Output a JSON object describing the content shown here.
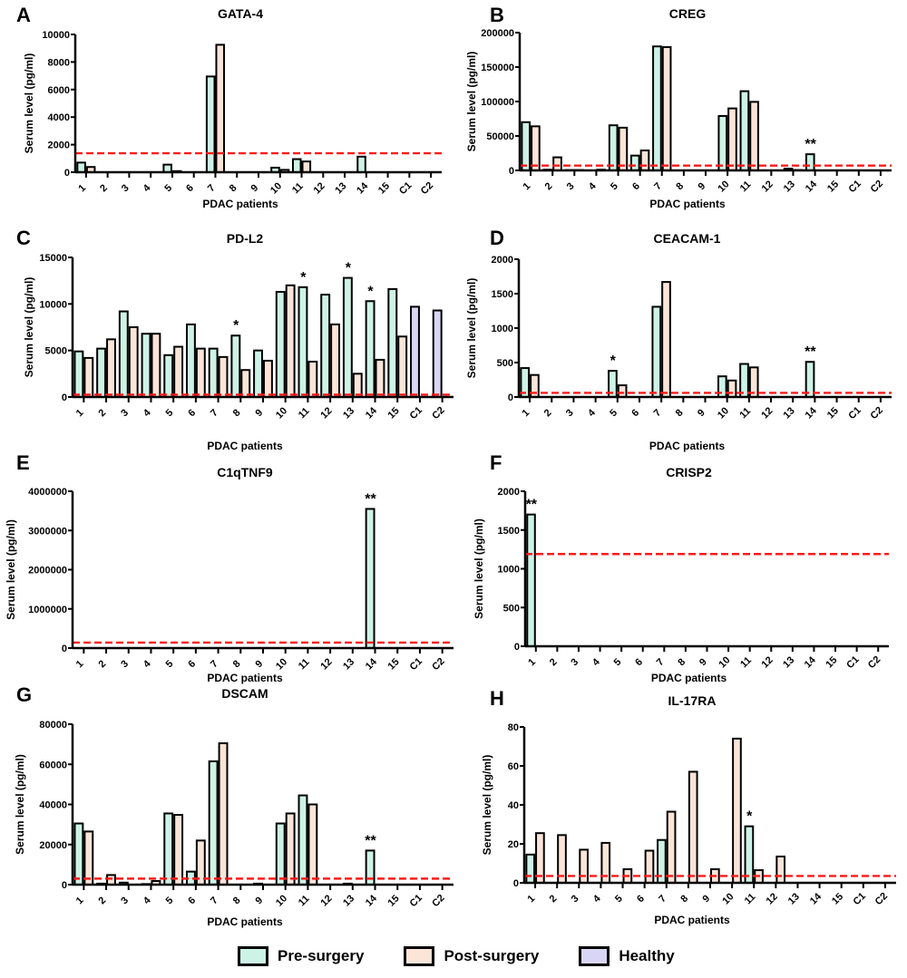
{
  "figure": {
    "legend": [
      {
        "label": "Pre-surgery",
        "color": "#cdf3e6"
      },
      {
        "label": "Post-surgery",
        "color": "#fbe4d8"
      },
      {
        "label": "Healthy",
        "color": "#d9d6f5"
      }
    ],
    "threshold_color": "#ff1a1a"
  },
  "chart_data": [
    {
      "panel": "A",
      "type": "bar",
      "title": "GATA-4",
      "xlabel": "PDAC patients",
      "ylabel": "Serum level (pg/ml)",
      "ylim": [
        0,
        10000
      ],
      "yticks": [
        0,
        2000,
        4000,
        6000,
        8000,
        10000
      ],
      "categories": [
        "1",
        "2",
        "3",
        "4",
        "5",
        "6",
        "7",
        "8",
        "9",
        "10",
        "11",
        "12",
        "13",
        "14",
        "15",
        "C1",
        "C2"
      ],
      "series": [
        {
          "name": "Pre-surgery",
          "values": [
            700,
            0,
            0,
            0,
            550,
            0,
            6950,
            0,
            0,
            330,
            950,
            0,
            0,
            1130,
            0,
            null,
            null
          ]
        },
        {
          "name": "Post-surgery",
          "values": [
            380,
            0,
            0,
            0,
            80,
            0,
            9250,
            0,
            0,
            170,
            780,
            0,
            0,
            0,
            0,
            null,
            null
          ]
        },
        {
          "name": "Healthy",
          "values": [
            null,
            null,
            null,
            null,
            null,
            null,
            null,
            null,
            null,
            null,
            null,
            null,
            null,
            null,
            null,
            0,
            0
          ]
        }
      ],
      "threshold": 1380,
      "significance": []
    },
    {
      "panel": "B",
      "type": "bar",
      "title": "CREG",
      "xlabel": "PDAC patients",
      "ylabel": "Serum level (pg/ml)",
      "ylim": [
        0,
        200000
      ],
      "yticks": [
        0,
        50000,
        100000,
        150000,
        200000
      ],
      "categories": [
        "1",
        "2",
        "3",
        "4",
        "5",
        "6",
        "7",
        "8",
        "9",
        "10",
        "11",
        "12",
        "13",
        "14",
        "15",
        "C1",
        "C2"
      ],
      "series": [
        {
          "name": "Pre-surgery",
          "values": [
            70000,
            1000,
            500,
            0,
            65500,
            21500,
            180000,
            0,
            0,
            79000,
            115000,
            0,
            2500,
            23500,
            0,
            null,
            null
          ]
        },
        {
          "name": "Post-surgery",
          "values": [
            64000,
            19000,
            500,
            1000,
            62000,
            29000,
            179000,
            0,
            0,
            90000,
            99500,
            0,
            500,
            0,
            0,
            null,
            null
          ]
        },
        {
          "name": "Healthy",
          "values": [
            null,
            null,
            null,
            null,
            null,
            null,
            null,
            null,
            null,
            null,
            null,
            null,
            null,
            null,
            null,
            0,
            0
          ]
        }
      ],
      "threshold": 7000,
      "significance": [
        {
          "category": "14",
          "label": "**"
        }
      ]
    },
    {
      "panel": "C",
      "type": "bar",
      "title": "PD-L2",
      "xlabel": "PDAC patients",
      "ylabel": "Serum level (pg/ml)",
      "ylim": [
        0,
        15000
      ],
      "yticks": [
        0,
        5000,
        10000,
        15000
      ],
      "categories": [
        "1",
        "2",
        "3",
        "4",
        "5",
        "6",
        "7",
        "8",
        "9",
        "10",
        "11",
        "12",
        "13",
        "14",
        "15",
        "C1",
        "C2"
      ],
      "series": [
        {
          "name": "Pre-surgery",
          "values": [
            4900,
            5200,
            9200,
            6800,
            4500,
            7800,
            5200,
            6600,
            5000,
            11300,
            11800,
            11000,
            12800,
            10300,
            11600,
            null,
            null
          ]
        },
        {
          "name": "Post-surgery",
          "values": [
            4200,
            6200,
            7500,
            6800,
            5400,
            5200,
            4300,
            2900,
            3900,
            12000,
            3800,
            7800,
            2500,
            4000,
            6500,
            null,
            null
          ]
        },
        {
          "name": "Healthy",
          "values": [
            null,
            null,
            null,
            null,
            null,
            null,
            null,
            null,
            null,
            null,
            null,
            null,
            null,
            null,
            null,
            9700,
            9300
          ]
        }
      ],
      "threshold": 250,
      "significance": [
        {
          "category": "8",
          "label": "*"
        },
        {
          "category": "11",
          "label": "*"
        },
        {
          "category": "13",
          "label": "*"
        },
        {
          "category": "14",
          "label": "*"
        }
      ]
    },
    {
      "panel": "D",
      "type": "bar",
      "title": "CEACAM-1",
      "xlabel": "PDAC patients",
      "ylabel": "Serum level (pg/ml)",
      "ylim": [
        0,
        2000
      ],
      "yticks": [
        0,
        500,
        1000,
        1500,
        2000
      ],
      "categories": [
        "1",
        "2",
        "3",
        "4",
        "5",
        "6",
        "7",
        "8",
        "9",
        "10",
        "11",
        "12",
        "13",
        "14",
        "15",
        "C1",
        "C2"
      ],
      "series": [
        {
          "name": "Pre-surgery",
          "values": [
            420,
            0,
            0,
            0,
            380,
            0,
            1310,
            0,
            0,
            300,
            480,
            0,
            0,
            510,
            0,
            null,
            null
          ]
        },
        {
          "name": "Post-surgery",
          "values": [
            320,
            0,
            0,
            0,
            170,
            0,
            1670,
            0,
            0,
            240,
            430,
            0,
            0,
            0,
            0,
            null,
            null
          ]
        },
        {
          "name": "Healthy",
          "values": [
            null,
            null,
            null,
            null,
            null,
            null,
            null,
            null,
            null,
            null,
            null,
            null,
            null,
            null,
            null,
            0,
            0
          ]
        }
      ],
      "threshold": 60,
      "significance": [
        {
          "category": "5",
          "label": "*"
        },
        {
          "category": "14",
          "label": "**"
        }
      ]
    },
    {
      "panel": "E",
      "type": "bar",
      "title": "C1qTNF9",
      "xlabel": "PDAC patients",
      "ylabel": "Serum level (pg/ml)",
      "ylim": [
        0,
        4000000
      ],
      "yticks": [
        0,
        1000000,
        2000000,
        3000000,
        4000000
      ],
      "categories": [
        "1",
        "2",
        "3",
        "4",
        "5",
        "6",
        "7",
        "8",
        "9",
        "10",
        "11",
        "12",
        "13",
        "14",
        "15",
        "C1",
        "C2"
      ],
      "series": [
        {
          "name": "Pre-surgery",
          "values": [
            0,
            0,
            0,
            0,
            0,
            0,
            0,
            0,
            0,
            0,
            0,
            0,
            0,
            3550000,
            0,
            null,
            null
          ]
        },
        {
          "name": "Post-surgery",
          "values": [
            0,
            0,
            0,
            0,
            0,
            0,
            0,
            0,
            0,
            0,
            0,
            0,
            0,
            0,
            0,
            null,
            null
          ]
        },
        {
          "name": "Healthy",
          "values": [
            null,
            null,
            null,
            null,
            null,
            null,
            null,
            null,
            null,
            null,
            null,
            null,
            null,
            null,
            null,
            0,
            0
          ]
        }
      ],
      "threshold": 140000,
      "significance": [
        {
          "category": "14",
          "label": "**"
        }
      ]
    },
    {
      "panel": "F",
      "type": "bar",
      "title": "CRISP2",
      "xlabel": "PDAC patients",
      "ylabel": "Serum level (pg/ml)",
      "ylim": [
        0,
        2000
      ],
      "yticks": [
        0,
        500,
        1000,
        1500,
        2000
      ],
      "categories": [
        "1",
        "2",
        "3",
        "4",
        "5",
        "6",
        "7",
        "8",
        "9",
        "10",
        "11",
        "12",
        "13",
        "14",
        "15",
        "C1",
        "C2"
      ],
      "series": [
        {
          "name": "Pre-surgery",
          "values": [
            1700,
            0,
            0,
            0,
            0,
            0,
            0,
            0,
            0,
            0,
            0,
            0,
            0,
            0,
            0,
            null,
            null
          ]
        },
        {
          "name": "Post-surgery",
          "values": [
            0,
            0,
            0,
            0,
            0,
            0,
            0,
            0,
            0,
            0,
            0,
            0,
            0,
            0,
            0,
            null,
            null
          ]
        },
        {
          "name": "Healthy",
          "values": [
            null,
            null,
            null,
            null,
            null,
            null,
            null,
            null,
            null,
            null,
            null,
            null,
            null,
            null,
            null,
            0,
            0
          ]
        }
      ],
      "threshold": 1190,
      "significance": [
        {
          "category": "1",
          "label": "**"
        }
      ]
    },
    {
      "panel": "G",
      "type": "bar",
      "title": "DSCAM",
      "xlabel": "PDAC patients",
      "ylabel": "Serum level (pg/ml)",
      "ylim": [
        0,
        80000
      ],
      "yticks": [
        0,
        20000,
        40000,
        60000,
        80000
      ],
      "categories": [
        "1",
        "2",
        "3",
        "4",
        "5",
        "6",
        "7",
        "8",
        "9",
        "10",
        "11",
        "12",
        "13",
        "14",
        "15",
        "C1",
        "C2"
      ],
      "series": [
        {
          "name": "Pre-surgery",
          "values": [
            30500,
            500,
            1000,
            300,
            35500,
            6500,
            61500,
            0,
            500,
            30500,
            44500,
            0,
            500,
            17000,
            0,
            null,
            null
          ]
        },
        {
          "name": "Post-surgery",
          "values": [
            26500,
            4800,
            0,
            1800,
            34800,
            22000,
            70500,
            0,
            0,
            35500,
            40000,
            0,
            0,
            0,
            0,
            null,
            null
          ]
        },
        {
          "name": "Healthy",
          "values": [
            null,
            null,
            null,
            null,
            null,
            null,
            null,
            null,
            null,
            null,
            null,
            null,
            null,
            null,
            null,
            0,
            0
          ]
        }
      ],
      "threshold": 3000,
      "significance": [
        {
          "category": "14",
          "label": "**"
        }
      ]
    },
    {
      "panel": "H",
      "type": "bar",
      "title": "IL-17RA",
      "xlabel": "PDAC patients",
      "ylabel": "Serum level (pg/ml)",
      "ylim": [
        0,
        80
      ],
      "yticks": [
        0,
        20,
        40,
        60,
        80
      ],
      "categories": [
        "1",
        "2",
        "3",
        "4",
        "5",
        "6",
        "7",
        "8",
        "9",
        "10",
        "11",
        "12",
        "13",
        "14",
        "15",
        "C1",
        "C2"
      ],
      "series": [
        {
          "name": "Pre-surgery",
          "values": [
            14.5,
            0,
            0,
            0,
            0,
            0,
            22,
            0,
            0,
            0,
            29,
            0,
            0,
            0,
            0,
            null,
            null
          ]
        },
        {
          "name": "Post-surgery",
          "values": [
            25.5,
            24.5,
            17,
            20.5,
            7,
            16.5,
            36.5,
            57,
            7,
            74,
            6.5,
            13.5,
            0,
            0,
            0,
            null,
            null
          ]
        },
        {
          "name": "Healthy",
          "values": [
            null,
            null,
            null,
            null,
            null,
            null,
            null,
            null,
            null,
            null,
            null,
            null,
            null,
            null,
            null,
            0,
            0
          ]
        }
      ],
      "threshold": 3.5,
      "significance": [
        {
          "category": "11",
          "label": "*"
        }
      ]
    }
  ]
}
